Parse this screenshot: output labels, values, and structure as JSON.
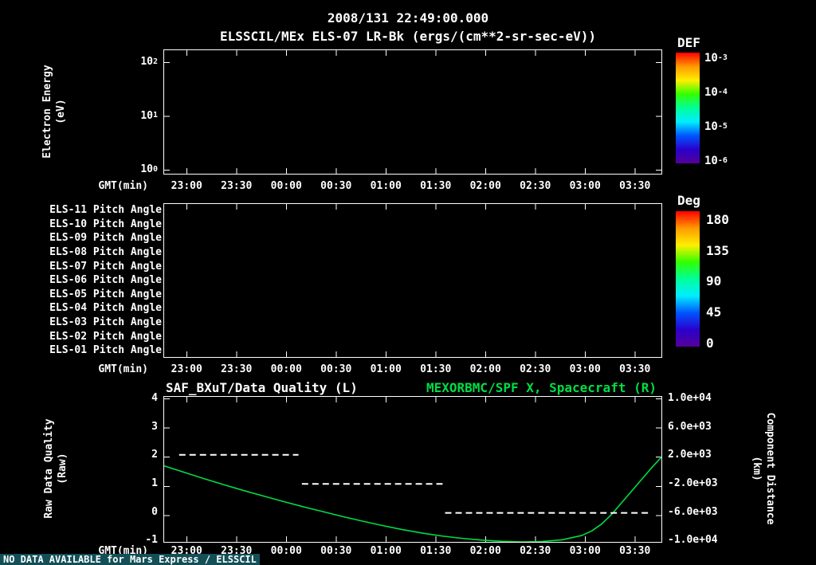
{
  "header": {
    "datetime": "2008/131 22:49:00.000",
    "subtitle": "ELSSCIL/MEx ELS-07 LR-Bk (ergs/(cm**2-sr-sec-eV))"
  },
  "colors": {
    "background": "#000000",
    "foreground": "#ffffff",
    "green": "#00dd44",
    "status_bg": "#134f57"
  },
  "colorbar_colors": [
    "#ff0000",
    "#ff9900",
    "#ffee00",
    "#33ff00",
    "#00ff99",
    "#00eeff",
    "#0055ff",
    "#2a00cc",
    "#550099"
  ],
  "time_axis": {
    "label": "GMT(min)",
    "ticks": [
      "23:00",
      "23:30",
      "00:00",
      "00:30",
      "01:00",
      "01:30",
      "02:00",
      "02:30",
      "03:00",
      "03:30"
    ]
  },
  "labels": {
    "energy_axis_line1": "Electron Energy",
    "energy_axis_line2": "(eV)",
    "quality_axis_line1": "Raw Data Quality",
    "quality_axis_line2": "(Raw)",
    "distance_axis_line1": "Component Distance",
    "distance_axis_line2": "(km)"
  },
  "chart_data": [
    {
      "type": "heatmap",
      "title": "ELSSCIL/MEx ELS-07 LR-Bk (ergs/(cm**2-sr-sec-eV))",
      "ylabel": "Electron Energy (eV)",
      "xlabel": "GMT(min)",
      "y_scale": "log",
      "y_ticks": [
        {
          "b": "10",
          "e": "2"
        },
        {
          "b": "10",
          "e": "1"
        },
        {
          "b": "10",
          "e": "0"
        }
      ],
      "colorbar": {
        "label": "DEF",
        "ticks": [
          {
            "b": "10",
            "e": "-3"
          },
          {
            "b": "10",
            "e": "-4"
          },
          {
            "b": "10",
            "e": "-5"
          },
          {
            "b": "10",
            "e": "-6"
          }
        ]
      },
      "values": []
    },
    {
      "type": "heatmap",
      "rows": [
        "ELS-11 Pitch Angle",
        "ELS-10 Pitch Angle",
        "ELS-09 Pitch Angle",
        "ELS-08 Pitch Angle",
        "ELS-07 Pitch Angle",
        "ELS-06 Pitch Angle",
        "ELS-05 Pitch Angle",
        "ELS-04 Pitch Angle",
        "ELS-03 Pitch Angle",
        "ELS-02 Pitch Angle",
        "ELS-01 Pitch Angle"
      ],
      "xlabel": "GMT(min)",
      "colorbar": {
        "label": "Deg",
        "ticks": [
          "180",
          "135",
          "90",
          "45",
          "0"
        ]
      },
      "values": []
    },
    {
      "type": "line",
      "title_left": "SAF_BXuT/Data Quality (L)",
      "title_right": "MEXORBMC/SPF X, Spacecraft (R)",
      "xlabel": "GMT(min)",
      "left_axis": {
        "label": "Raw Data Quality (Raw)",
        "ylim": [
          -1,
          4
        ],
        "ticks": [
          "4",
          "3",
          "2",
          "1",
          "0",
          "-1"
        ]
      },
      "right_axis": {
        "label": "Component Distance (km)",
        "ylim": [
          -10000,
          10000
        ],
        "ticks": [
          "1.0e+04",
          "6.0e+03",
          "2.0e+03",
          "-2.0e+03",
          "-6.0e+03",
          "-1.0e+04"
        ]
      },
      "series": [
        {
          "name": "MEXORBMC/SPF X, Spacecraft",
          "axis": "right",
          "color": "#00dd44",
          "points": [
            [
              0.0,
              480
            ],
            [
              0.04,
              -400
            ],
            [
              0.08,
              -1280
            ],
            [
              0.12,
              -2120
            ],
            [
              0.16,
              -2920
            ],
            [
              0.2,
              -3680
            ],
            [
              0.24,
              -4440
            ],
            [
              0.28,
              -5160
            ],
            [
              0.32,
              -5840
            ],
            [
              0.36,
              -6520
            ],
            [
              0.4,
              -7160
            ],
            [
              0.44,
              -7760
            ],
            [
              0.48,
              -8320
            ],
            [
              0.52,
              -8800
            ],
            [
              0.56,
              -9200
            ],
            [
              0.6,
              -9520
            ],
            [
              0.64,
              -9760
            ],
            [
              0.68,
              -9920
            ],
            [
              0.72,
              -10000
            ],
            [
              0.76,
              -9960
            ],
            [
              0.8,
              -9720
            ],
            [
              0.84,
              -9120
            ],
            [
              0.86,
              -8480
            ],
            [
              0.88,
              -7520
            ],
            [
              0.9,
              -6200
            ],
            [
              0.92,
              -4600
            ],
            [
              0.94,
              -3000
            ],
            [
              0.96,
              -1400
            ],
            [
              0.98,
              200
            ],
            [
              1.0,
              1680
            ]
          ]
        },
        {
          "name": "SAF_BXuT/Data Quality",
          "axis": "left",
          "color": "#ffffff",
          "style": "dashed",
          "segments": [
            {
              "value": 2,
              "from": 0.03,
              "to": 0.27
            },
            {
              "value": 1,
              "from": 0.277,
              "to": 0.56
            },
            {
              "value": 0,
              "from": 0.565,
              "to": 0.98
            }
          ]
        }
      ]
    }
  ],
  "status": {
    "message": "NO DATA AVAILABLE for Mars Express / ELSSCIL"
  }
}
